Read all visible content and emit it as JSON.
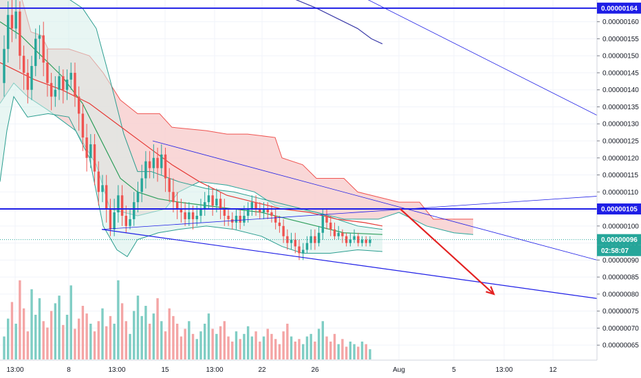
{
  "chart_data": {
    "type": "candlestick",
    "price_axis": {
      "ylim": [
        6.1e-07,
        1.68e-06
      ],
      "ticks": [
        "0.00000065",
        "0.00000070",
        "0.00000075",
        "0.00000080",
        "0.00000085",
        "0.00000090",
        "0.00000095",
        "0.00000100",
        "0.00000105",
        "0.00000110",
        "0.00000115",
        "0.00000120",
        "0.00000125",
        "0.00000130",
        "0.00000135",
        "0.00000140",
        "0.00000145",
        "0.00000150",
        "0.00000155",
        "0.00000160"
      ]
    },
    "time_axis": {
      "ticks": [
        "13:00",
        "8",
        "13:00",
        "15",
        "13:00",
        "22",
        "26",
        "Aug",
        "5",
        "13:00",
        "12"
      ]
    },
    "horizontal_levels": [
      {
        "label": "0.00000164",
        "value": 1.64e-06,
        "color": "#1e1ee6"
      },
      {
        "label": "0.00000105",
        "value": 1.05e-06,
        "color": "#1e1ee6"
      }
    ],
    "last_price": {
      "label": "0.00000096",
      "value": 9.6e-07,
      "color": "#26a69a"
    },
    "countdown": "02:58:07",
    "colors": {
      "up": "#26a69a",
      "down": "#ef5350",
      "upVol": "#7fcdc4",
      "downVol": "#f4a5a5",
      "cloudBear": "#f8d0d0",
      "cloudBull": "#d6eeea",
      "trend": "#1e1ee6",
      "arrow": "#e32222",
      "ema": "#e53935",
      "greenMa": "#2e9e5b",
      "band": "#2a9d8f"
    },
    "candles": [
      [
        1.42,
        1.52,
        1.56,
        1.38
      ],
      [
        1.52,
        1.62,
        1.66,
        1.48
      ],
      [
        1.62,
        1.58,
        1.68,
        1.54
      ],
      [
        1.58,
        1.63,
        1.67,
        1.55
      ],
      [
        1.63,
        1.5,
        1.66,
        1.46
      ],
      [
        1.5,
        1.45,
        1.53,
        1.4
      ],
      [
        1.45,
        1.4,
        1.49,
        1.36
      ],
      [
        1.4,
        1.47,
        1.5,
        1.37
      ],
      [
        1.47,
        1.55,
        1.58,
        1.44
      ],
      [
        1.55,
        1.56,
        1.59,
        1.49
      ],
      [
        1.56,
        1.48,
        1.6,
        1.44
      ],
      [
        1.48,
        1.42,
        1.52,
        1.38
      ],
      [
        1.42,
        1.38,
        1.45,
        1.34
      ],
      [
        1.38,
        1.4,
        1.44,
        1.35
      ],
      [
        1.4,
        1.44,
        1.47,
        1.37
      ],
      [
        1.44,
        1.4,
        1.46,
        1.36
      ],
      [
        1.4,
        1.43,
        1.46,
        1.37
      ],
      [
        1.43,
        1.45,
        1.48,
        1.4
      ],
      [
        1.45,
        1.38,
        1.48,
        1.35
      ],
      [
        1.38,
        1.33,
        1.41,
        1.28
      ],
      [
        1.33,
        1.26,
        1.36,
        1.22
      ],
      [
        1.26,
        1.2,
        1.3,
        1.16
      ],
      [
        1.2,
        1.24,
        1.27,
        1.17
      ],
      [
        1.24,
        1.16,
        1.27,
        1.12
      ],
      [
        1.16,
        1.1,
        1.19,
        1.06
      ],
      [
        1.1,
        1.12,
        1.15,
        1.07
      ],
      [
        1.12,
        1.05,
        1.15,
        1.01
      ],
      [
        1.05,
        0.99,
        1.08,
        0.97
      ],
      [
        0.99,
        1.04,
        1.08,
        0.97
      ],
      [
        1.04,
        1.09,
        1.12,
        1.01
      ],
      [
        1.09,
        1.03,
        1.12,
        1.0
      ],
      [
        1.03,
        1.0,
        1.06,
        0.98
      ],
      [
        1.0,
        1.02,
        1.05,
        0.99
      ],
      [
        1.02,
        1.07,
        1.1,
        1.0
      ],
      [
        1.07,
        1.1,
        1.13,
        1.04
      ],
      [
        1.1,
        1.14,
        1.18,
        1.07
      ],
      [
        1.14,
        1.19,
        1.22,
        1.11
      ],
      [
        1.19,
        1.17,
        1.22,
        1.14
      ],
      [
        1.17,
        1.2,
        1.24,
        1.14
      ],
      [
        1.2,
        1.17,
        1.23,
        1.13
      ],
      [
        1.17,
        1.21,
        1.24,
        1.15
      ],
      [
        1.21,
        1.14,
        1.23,
        1.1
      ],
      [
        1.14,
        1.1,
        1.17,
        1.07
      ],
      [
        1.1,
        1.07,
        1.14,
        1.04
      ],
      [
        1.07,
        1.05,
        1.1,
        1.02
      ],
      [
        1.05,
        1.04,
        1.08,
        1.01
      ],
      [
        1.04,
        1.02,
        1.07,
        1.0
      ],
      [
        1.02,
        1.04,
        1.07,
        1.0
      ],
      [
        1.04,
        1.02,
        1.06,
        0.99
      ],
      [
        1.02,
        1.03,
        1.06,
        1.0
      ],
      [
        1.03,
        1.05,
        1.08,
        1.01
      ],
      [
        1.05,
        1.07,
        1.1,
        1.03
      ],
      [
        1.07,
        1.09,
        1.12,
        1.05
      ],
      [
        1.09,
        1.06,
        1.11,
        1.03
      ],
      [
        1.06,
        1.08,
        1.11,
        1.04
      ],
      [
        1.08,
        1.05,
        1.1,
        1.02
      ],
      [
        1.05,
        1.03,
        1.08,
        1.0
      ],
      [
        1.03,
        1.02,
        1.05,
        1.0
      ],
      [
        1.02,
        1.01,
        1.04,
        0.99
      ],
      [
        1.01,
        1.03,
        1.05,
        0.99
      ],
      [
        1.03,
        1.01,
        1.05,
        0.99
      ],
      [
        1.01,
        1.03,
        1.06,
        1.0
      ],
      [
        1.03,
        1.05,
        1.07,
        1.01
      ],
      [
        1.05,
        1.07,
        1.09,
        1.03
      ],
      [
        1.07,
        1.05,
        1.09,
        1.03
      ],
      [
        1.05,
        1.04,
        1.07,
        1.02
      ],
      [
        1.04,
        1.05,
        1.07,
        1.02
      ],
      [
        1.05,
        1.04,
        1.07,
        1.02
      ],
      [
        1.04,
        1.03,
        1.06,
        1.01
      ],
      [
        1.03,
        1.01,
        1.05,
        0.99
      ],
      [
        1.01,
        1.0,
        1.03,
        0.98
      ],
      [
        1.0,
        0.97,
        1.02,
        0.95
      ],
      [
        0.97,
        0.95,
        0.99,
        0.93
      ],
      [
        0.95,
        0.96,
        0.98,
        0.93
      ],
      [
        0.96,
        0.94,
        0.98,
        0.92
      ],
      [
        0.94,
        0.92,
        0.96,
        0.9
      ],
      [
        0.92,
        0.93,
        0.95,
        0.9
      ],
      [
        0.93,
        0.95,
        0.97,
        0.92
      ],
      [
        0.95,
        0.97,
        0.99,
        0.93
      ],
      [
        0.97,
        0.95,
        0.99,
        0.93
      ],
      [
        0.95,
        0.98,
        1.0,
        0.94
      ],
      [
        0.98,
        1.03,
        1.05,
        0.96
      ],
      [
        1.03,
        1.01,
        1.05,
        0.99
      ],
      [
        1.01,
        0.99,
        1.03,
        0.97
      ],
      [
        0.99,
        0.97,
        1.01,
        0.96
      ],
      [
        0.97,
        0.98,
        1.0,
        0.96
      ],
      [
        0.98,
        0.97,
        0.99,
        0.95
      ],
      [
        0.97,
        0.95,
        0.98,
        0.94
      ],
      [
        0.95,
        0.96,
        0.98,
        0.94
      ],
      [
        0.96,
        0.97,
        0.99,
        0.95
      ],
      [
        0.97,
        0.95,
        0.98,
        0.94
      ],
      [
        0.95,
        0.96,
        0.97,
        0.94
      ],
      [
        0.96,
        0.95,
        0.97,
        0.94
      ],
      [
        0.95,
        0.96,
        0.97,
        0.94
      ]
    ],
    "volumes": [
      18,
      32,
      45,
      28,
      62,
      40,
      22,
      55,
      35,
      48,
      30,
      25,
      38,
      44,
      50,
      27,
      35,
      58,
      24,
      32,
      42,
      36,
      28,
      22,
      30,
      40,
      26,
      34,
      28,
      62,
      44,
      30,
      20,
      38,
      50,
      34,
      42,
      28,
      36,
      48,
      30,
      22,
      40,
      34,
      28,
      18,
      24,
      30,
      20,
      16,
      22,
      28,
      36,
      24,
      20,
      26,
      30,
      18,
      14,
      22,
      16,
      20,
      26,
      18,
      22,
      14,
      18,
      24,
      20,
      16,
      12,
      22,
      28,
      18,
      14,
      16,
      12,
      18,
      20,
      14,
      24,
      30,
      18,
      14,
      20,
      12,
      16,
      10,
      14,
      12,
      10,
      14,
      12,
      8
    ]
  }
}
